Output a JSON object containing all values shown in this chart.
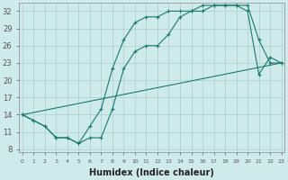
{
  "xlabel": "Humidex (Indice chaleur)",
  "background_color": "#ceeaea",
  "grid_color": "#aacece",
  "line_color": "#1a7a6e",
  "yticks": [
    8,
    11,
    14,
    17,
    20,
    23,
    26,
    29,
    32
  ],
  "ylim": [
    7.5,
    33.5
  ],
  "xlim": [
    -0.3,
    23.3
  ],
  "xticks": [
    0,
    1,
    2,
    3,
    4,
    5,
    6,
    7,
    8,
    9,
    10,
    11,
    12,
    13,
    14,
    15,
    16,
    17,
    18,
    19,
    20,
    21,
    22,
    23
  ],
  "line1_x": [
    0,
    1,
    2,
    3,
    4,
    5,
    6,
    7,
    8,
    9,
    10,
    11,
    12,
    13,
    14,
    15,
    16,
    17,
    18,
    19,
    20,
    21,
    22,
    23
  ],
  "line1_y": [
    14,
    13,
    12,
    10,
    10,
    9,
    10,
    10,
    15,
    22,
    25,
    26,
    26,
    28,
    31,
    32,
    32,
    33,
    33,
    33,
    32,
    21,
    24,
    23
  ],
  "line2_x": [
    0,
    1,
    2,
    3,
    4,
    5,
    6,
    7,
    8,
    9,
    10,
    11,
    12,
    13,
    14,
    15,
    16,
    17,
    18,
    19,
    20,
    21,
    22,
    23
  ],
  "line2_y": [
    14,
    13,
    12,
    10,
    10,
    9,
    12,
    15,
    22,
    27,
    30,
    31,
    31,
    32,
    32,
    32,
    33,
    33,
    33,
    33,
    33,
    27,
    23,
    23
  ],
  "line3_x": [
    0,
    23
  ],
  "line3_y": [
    14,
    23
  ]
}
